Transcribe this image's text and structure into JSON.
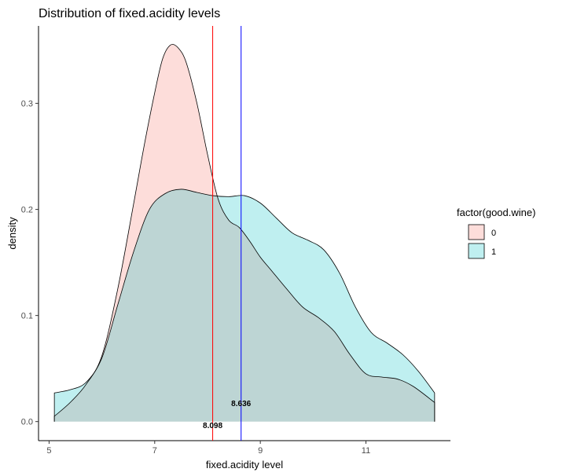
{
  "chart_data": {
    "type": "area",
    "title": "Distribution of fixed.acidity levels",
    "xlabel": "fixed.acidity level",
    "ylabel": "density",
    "xlim": [
      4.8,
      12.6
    ],
    "ylim": [
      -0.018,
      0.373
    ],
    "x_ticks": [
      5,
      7,
      9,
      11
    ],
    "y_ticks": [
      0.0,
      0.1,
      0.2,
      0.3
    ],
    "y_tick_labels": [
      "0.0",
      "0.1",
      "0.2",
      "0.3"
    ],
    "grid": false,
    "legend": {
      "title": "factor(good.wine)",
      "position": "right",
      "entries": [
        "0",
        "1"
      ]
    },
    "series": [
      {
        "name": "0",
        "fill": "#F8766D",
        "points": [
          [
            5.1,
            0.005
          ],
          [
            5.4,
            0.018
          ],
          [
            5.7,
            0.035
          ],
          [
            6.0,
            0.062
          ],
          [
            6.3,
            0.125
          ],
          [
            6.6,
            0.205
          ],
          [
            6.8,
            0.26
          ],
          [
            7.0,
            0.31
          ],
          [
            7.15,
            0.342
          ],
          [
            7.3,
            0.355
          ],
          [
            7.45,
            0.352
          ],
          [
            7.6,
            0.338
          ],
          [
            7.8,
            0.3
          ],
          [
            8.0,
            0.252
          ],
          [
            8.2,
            0.21
          ],
          [
            8.4,
            0.19
          ],
          [
            8.6,
            0.183
          ],
          [
            8.8,
            0.17
          ],
          [
            9.0,
            0.155
          ],
          [
            9.2,
            0.143
          ],
          [
            9.5,
            0.125
          ],
          [
            9.8,
            0.108
          ],
          [
            10.1,
            0.098
          ],
          [
            10.4,
            0.085
          ],
          [
            10.7,
            0.063
          ],
          [
            11.0,
            0.045
          ],
          [
            11.3,
            0.042
          ],
          [
            11.6,
            0.04
          ],
          [
            11.9,
            0.033
          ],
          [
            12.3,
            0.018
          ]
        ]
      },
      {
        "name": "1",
        "fill": "#00BFC4",
        "points": [
          [
            5.1,
            0.027
          ],
          [
            5.4,
            0.03
          ],
          [
            5.7,
            0.037
          ],
          [
            6.0,
            0.06
          ],
          [
            6.3,
            0.11
          ],
          [
            6.6,
            0.16
          ],
          [
            6.9,
            0.2
          ],
          [
            7.2,
            0.215
          ],
          [
            7.5,
            0.219
          ],
          [
            7.8,
            0.216
          ],
          [
            8.1,
            0.213
          ],
          [
            8.4,
            0.212
          ],
          [
            8.7,
            0.213
          ],
          [
            9.0,
            0.206
          ],
          [
            9.3,
            0.192
          ],
          [
            9.6,
            0.178
          ],
          [
            9.9,
            0.171
          ],
          [
            10.2,
            0.162
          ],
          [
            10.5,
            0.14
          ],
          [
            10.8,
            0.108
          ],
          [
            11.1,
            0.084
          ],
          [
            11.4,
            0.074
          ],
          [
            11.7,
            0.063
          ],
          [
            12.0,
            0.047
          ],
          [
            12.3,
            0.027
          ]
        ]
      }
    ],
    "vlines": [
      {
        "x": 8.098,
        "color": "#FF0000",
        "label": "8.098"
      },
      {
        "x": 8.636,
        "color": "#0000FF",
        "label": "8.636"
      }
    ]
  }
}
